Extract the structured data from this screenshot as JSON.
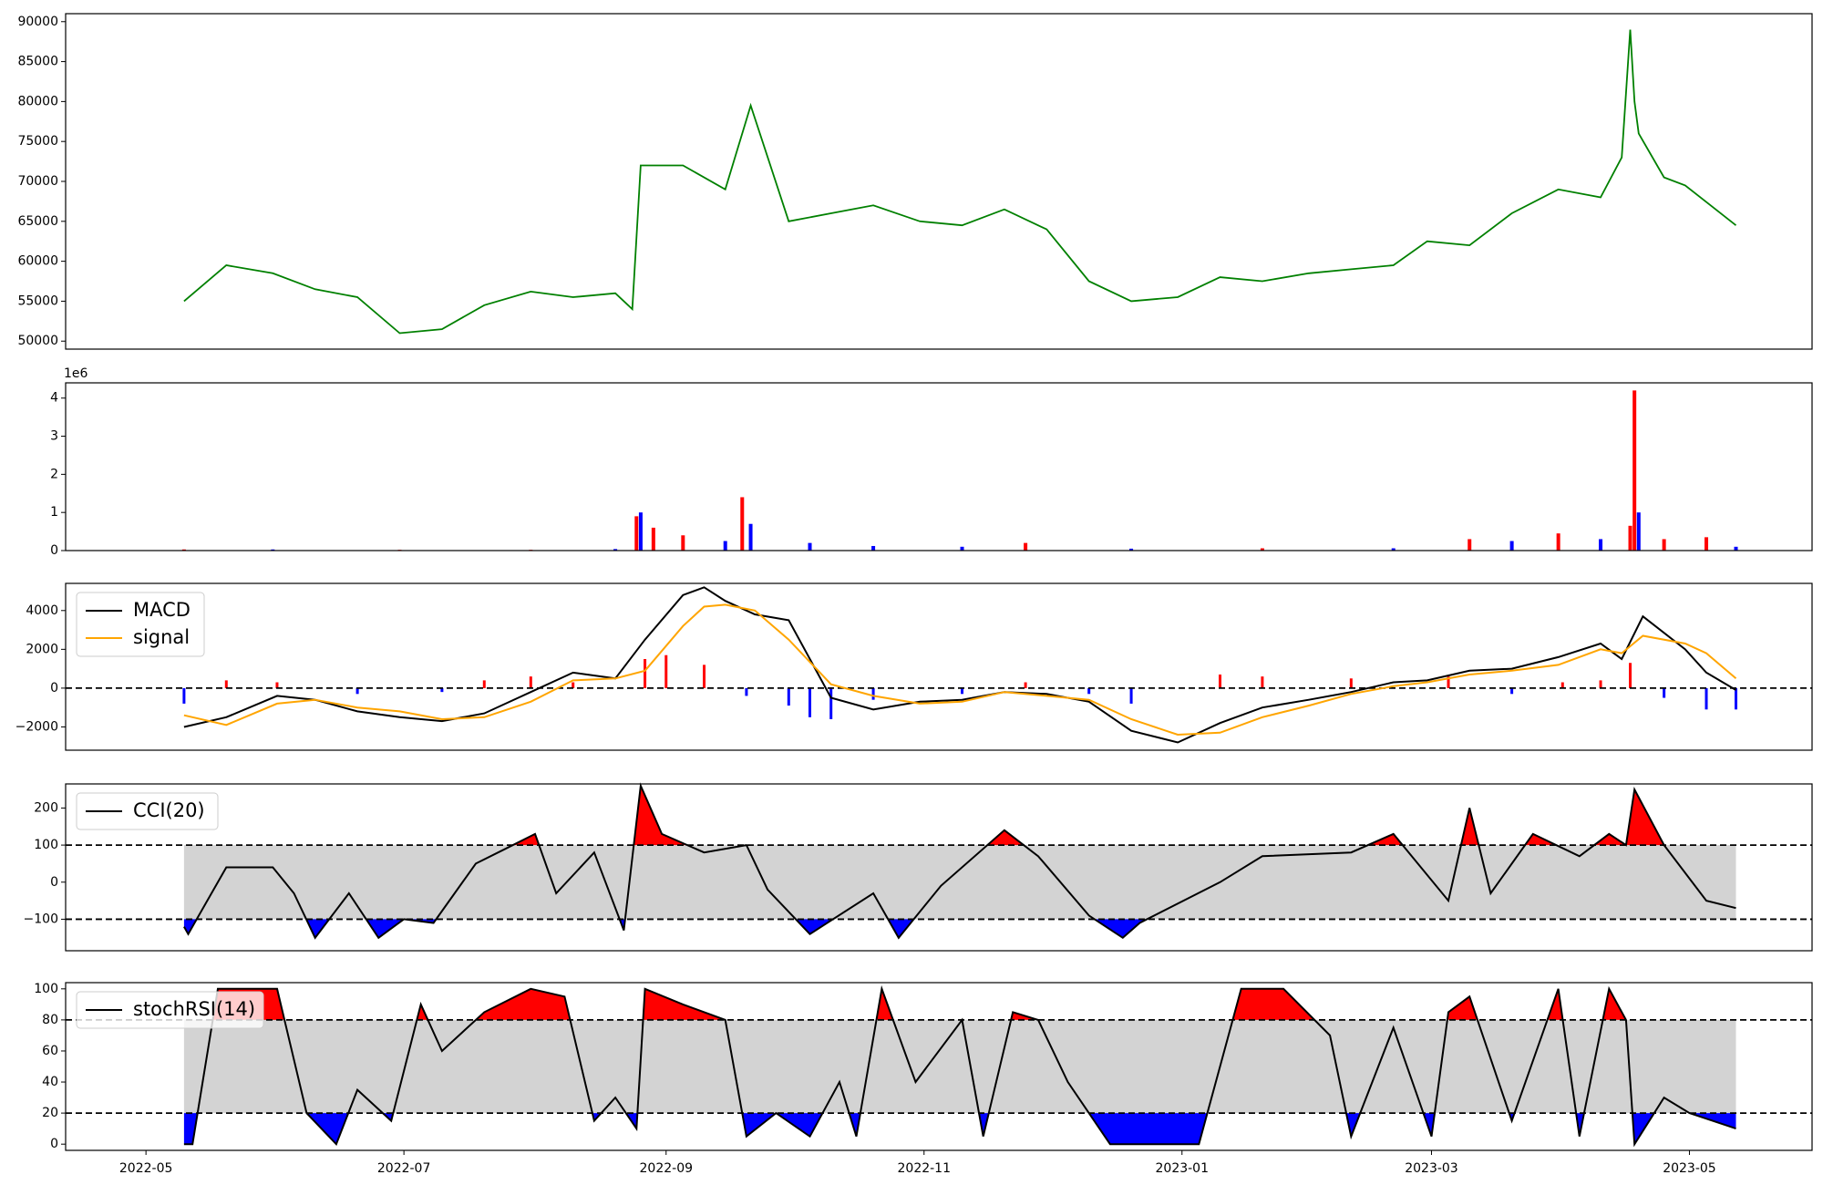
{
  "chart_data": [
    {
      "type": "line",
      "panel": "price",
      "x": [
        "2022-05-10",
        "2022-05-20",
        "2022-05-31",
        "2022-06-10",
        "2022-06-20",
        "2022-06-30",
        "2022-07-10",
        "2022-07-20",
        "2022-07-31",
        "2022-08-10",
        "2022-08-20",
        "2022-08-24",
        "2022-08-26",
        "2022-09-05",
        "2022-09-15",
        "2022-09-21",
        "2022-09-30",
        "2022-10-10",
        "2022-10-20",
        "2022-10-31",
        "2022-11-10",
        "2022-11-20",
        "2022-11-30",
        "2022-12-10",
        "2022-12-20",
        "2022-12-31",
        "2023-01-10",
        "2023-01-20",
        "2023-01-31",
        "2023-02-10",
        "2023-02-20",
        "2023-02-28",
        "2023-03-10",
        "2023-03-20",
        "2023-03-31",
        "2023-04-10",
        "2023-04-15",
        "2023-04-17",
        "2023-04-18",
        "2023-04-19",
        "2023-04-25",
        "2023-04-30",
        "2023-05-06",
        "2023-05-12"
      ],
      "series": [
        {
          "color": "#008000",
          "values": [
            55000,
            59500,
            58500,
            56500,
            55500,
            51000,
            51500,
            54500,
            56200,
            55500,
            56000,
            54000,
            72000,
            72000,
            69000,
            79500,
            65000,
            66000,
            67000,
            65000,
            64500,
            66500,
            64000,
            57500,
            55000,
            55500,
            58000,
            57500,
            58500,
            59000,
            59500,
            62500,
            62000,
            66000,
            69000,
            68000,
            73000,
            89000,
            80000,
            76000,
            70500,
            69500,
            67000,
            64500
          ]
        }
      ],
      "ylim": [
        49000,
        91000
      ],
      "yticks": [
        "50000",
        "55000",
        "60000",
        "65000",
        "70000",
        "75000",
        "80000",
        "85000",
        "90000"
      ]
    },
    {
      "type": "bar",
      "panel": "volume",
      "x": [
        "2022-05-10",
        "2022-05-31",
        "2022-06-30",
        "2022-07-31",
        "2022-08-20",
        "2022-08-25",
        "2022-08-26",
        "2022-08-29",
        "2022-09-05",
        "2022-09-15",
        "2022-09-19",
        "2022-09-21",
        "2022-10-05",
        "2022-10-20",
        "2022-11-10",
        "2022-11-25",
        "2022-12-20",
        "2023-01-20",
        "2023-02-20",
        "2023-03-10",
        "2023-03-20",
        "2023-03-31",
        "2023-04-10",
        "2023-04-17",
        "2023-04-18",
        "2023-04-19",
        "2023-04-25",
        "2023-05-05",
        "2023-05-12"
      ],
      "values": [
        30000,
        30000,
        20000,
        20000,
        40000,
        900000,
        1000000,
        600000,
        400000,
        250000,
        1400000,
        700000,
        200000,
        120000,
        100000,
        200000,
        50000,
        60000,
        60000,
        300000,
        250000,
        450000,
        300000,
        650000,
        4200000,
        1000000,
        300000,
        350000,
        100000
      ],
      "colors": [
        "#ff0000",
        "#0000ff",
        "#ff0000",
        "#ff0000",
        "#0000ff",
        "#ff0000",
        "#0000ff",
        "#ff0000",
        "#ff0000",
        "#0000ff",
        "#ff0000",
        "#0000ff",
        "#0000ff",
        "#0000ff",
        "#0000ff",
        "#ff0000",
        "#0000ff",
        "#ff0000",
        "#0000ff",
        "#ff0000",
        "#0000ff",
        "#ff0000",
        "#0000ff",
        "#ff0000",
        "#ff0000",
        "#0000ff",
        "#ff0000",
        "#ff0000",
        "#0000ff"
      ],
      "ylim": [
        0,
        4400000
      ],
      "yticks": [
        "0",
        "1",
        "2",
        "3",
        "4"
      ],
      "scale_label": "1e6"
    },
    {
      "type": "line",
      "panel": "macd",
      "x": [
        "2022-05-10",
        "2022-05-20",
        "2022-06-01",
        "2022-06-10",
        "2022-06-20",
        "2022-06-30",
        "2022-07-10",
        "2022-07-20",
        "2022-07-31",
        "2022-08-10",
        "2022-08-20",
        "2022-08-27",
        "2022-09-05",
        "2022-09-10",
        "2022-09-15",
        "2022-09-22",
        "2022-09-30",
        "2022-10-10",
        "2022-10-20",
        "2022-10-31",
        "2022-11-10",
        "2022-11-20",
        "2022-11-30",
        "2022-12-10",
        "2022-12-20",
        "2022-12-31",
        "2023-01-10",
        "2023-01-20",
        "2023-01-31",
        "2023-02-10",
        "2023-02-20",
        "2023-02-28",
        "2023-03-10",
        "2023-03-20",
        "2023-03-31",
        "2023-04-10",
        "2023-04-15",
        "2023-04-20",
        "2023-04-30",
        "2023-05-05",
        "2023-05-12"
      ],
      "series": [
        {
          "name": "MACD",
          "color": "#000000",
          "values": [
            -2000,
            -1500,
            -400,
            -600,
            -1200,
            -1500,
            -1700,
            -1300,
            -200,
            800,
            500,
            2500,
            4800,
            5200,
            4500,
            3800,
            3500,
            -500,
            -1100,
            -700,
            -600,
            -200,
            -300,
            -700,
            -2200,
            -2800,
            -1800,
            -1000,
            -600,
            -200,
            300,
            400,
            900,
            1000,
            1600,
            2300,
            1500,
            3700,
            2000,
            800,
            -100
          ]
        },
        {
          "name": "signal",
          "color": "#ffa500",
          "values": [
            -1400,
            -1900,
            -800,
            -600,
            -1000,
            -1200,
            -1600,
            -1500,
            -700,
            400,
            500,
            900,
            3200,
            4200,
            4300,
            4000,
            2500,
            200,
            -400,
            -800,
            -700,
            -200,
            -400,
            -600,
            -1600,
            -2400,
            -2300,
            -1500,
            -900,
            -300,
            100,
            300,
            700,
            900,
            1200,
            2000,
            1800,
            2700,
            2300,
            1800,
            500
          ]
        }
      ],
      "hist_x": [
        "2022-05-10",
        "2022-05-20",
        "2022-06-01",
        "2022-06-20",
        "2022-07-10",
        "2022-07-20",
        "2022-07-31",
        "2022-08-10",
        "2022-08-27",
        "2022-09-01",
        "2022-09-10",
        "2022-09-20",
        "2022-09-30",
        "2022-10-05",
        "2022-10-10",
        "2022-10-20",
        "2022-11-10",
        "2022-11-25",
        "2022-12-10",
        "2022-12-20",
        "2023-01-10",
        "2023-01-20",
        "2023-02-10",
        "2023-03-05",
        "2023-03-20",
        "2023-04-01",
        "2023-04-10",
        "2023-04-17",
        "2023-04-25",
        "2023-05-05",
        "2023-05-12"
      ],
      "hist_values": [
        -800,
        400,
        300,
        -300,
        -200,
        400,
        600,
        300,
        1500,
        1700,
        1200,
        -400,
        -900,
        -1500,
        -1600,
        -600,
        -300,
        300,
        -300,
        -800,
        700,
        600,
        500,
        600,
        -300,
        300,
        400,
        1300,
        -500,
        -1100,
        -1100
      ],
      "ylim": [
        -3200,
        5400
      ],
      "yticks": [
        "−2000",
        "0",
        "2000",
        "4000"
      ]
    },
    {
      "type": "line",
      "panel": "cci",
      "x": [
        "2022-05-10",
        "2022-05-11",
        "2022-05-20",
        "2022-05-31",
        "2022-06-05",
        "2022-06-10",
        "2022-06-18",
        "2022-06-25",
        "2022-07-01",
        "2022-07-08",
        "2022-07-18",
        "2022-07-25",
        "2022-08-01",
        "2022-08-06",
        "2022-08-15",
        "2022-08-22",
        "2022-08-26",
        "2022-08-31",
        "2022-09-10",
        "2022-09-20",
        "2022-09-25",
        "2022-10-05",
        "2022-10-20",
        "2022-10-26",
        "2022-11-05",
        "2022-11-20",
        "2022-11-28",
        "2022-12-10",
        "2022-12-18",
        "2022-12-22",
        "2023-01-10",
        "2023-01-20",
        "2023-02-10",
        "2023-02-20",
        "2023-03-05",
        "2023-03-10",
        "2023-03-15",
        "2023-03-25",
        "2023-04-05",
        "2023-04-12",
        "2023-04-16",
        "2023-04-18",
        "2023-04-25",
        "2023-05-05",
        "2023-05-12"
      ],
      "series": [
        {
          "name": "CCI(20)",
          "color": "#000000",
          "values": [
            -120,
            -140,
            40,
            40,
            -30,
            -150,
            -30,
            -150,
            -100,
            -110,
            50,
            90,
            130,
            -30,
            80,
            -130,
            260,
            130,
            80,
            100,
            -20,
            -140,
            -30,
            -150,
            -10,
            140,
            70,
            -90,
            -150,
            -110,
            0,
            70,
            80,
            130,
            -50,
            200,
            -30,
            130,
            70,
            130,
            100,
            250,
            100,
            -50,
            -70
          ]
        }
      ],
      "ylim": [
        -185,
        265
      ],
      "yticks": [
        "−100",
        "0",
        "100",
        "200"
      ],
      "hlines": [
        100,
        -100
      ]
    },
    {
      "type": "line",
      "panel": "stochrsi",
      "x": [
        "2022-05-10",
        "2022-05-12",
        "2022-05-18",
        "2022-06-01",
        "2022-06-08",
        "2022-06-15",
        "2022-06-20",
        "2022-06-28",
        "2022-07-05",
        "2022-07-10",
        "2022-07-20",
        "2022-07-31",
        "2022-08-08",
        "2022-08-15",
        "2022-08-20",
        "2022-08-25",
        "2022-08-27",
        "2022-09-05",
        "2022-09-15",
        "2022-09-20",
        "2022-09-27",
        "2022-10-05",
        "2022-10-12",
        "2022-10-16",
        "2022-10-22",
        "2022-10-30",
        "2022-11-10",
        "2022-11-15",
        "2022-11-22",
        "2022-11-28",
        "2022-12-05",
        "2022-12-15",
        "2022-12-28",
        "2023-01-05",
        "2023-01-15",
        "2023-01-25",
        "2023-02-05",
        "2023-02-10",
        "2023-02-20",
        "2023-03-01",
        "2023-03-05",
        "2023-03-10",
        "2023-03-20",
        "2023-03-31",
        "2023-04-05",
        "2023-04-12",
        "2023-04-16",
        "2023-04-18",
        "2023-04-25",
        "2023-05-01",
        "2023-05-12"
      ],
      "series": [
        {
          "name": "stochRSI(14)",
          "color": "#000000",
          "values": [
            0,
            0,
            100,
            100,
            20,
            0,
            35,
            15,
            90,
            60,
            85,
            100,
            95,
            15,
            30,
            10,
            100,
            90,
            80,
            5,
            20,
            5,
            40,
            5,
            100,
            40,
            80,
            5,
            85,
            80,
            40,
            0,
            0,
            0,
            100,
            100,
            70,
            5,
            75,
            5,
            85,
            95,
            15,
            100,
            5,
            100,
            80,
            0,
            30,
            20,
            10
          ]
        }
      ],
      "ylim": [
        -4,
        104
      ],
      "yticks": [
        "0",
        "20",
        "40",
        "60",
        "80",
        "100"
      ],
      "hlines": [
        80,
        20
      ]
    }
  ],
  "x_axis": {
    "ticks": [
      "2022-05",
      "2022-07",
      "2022-09",
      "2022-11",
      "2023-01",
      "2023-03",
      "2023-05"
    ],
    "range": [
      "2022-04-12",
      "2023-05-30"
    ]
  },
  "colors": {
    "up": "#ff0000",
    "down": "#0000ff",
    "band": "#d3d3d3",
    "price": "#008000",
    "signal": "#ffa500"
  }
}
